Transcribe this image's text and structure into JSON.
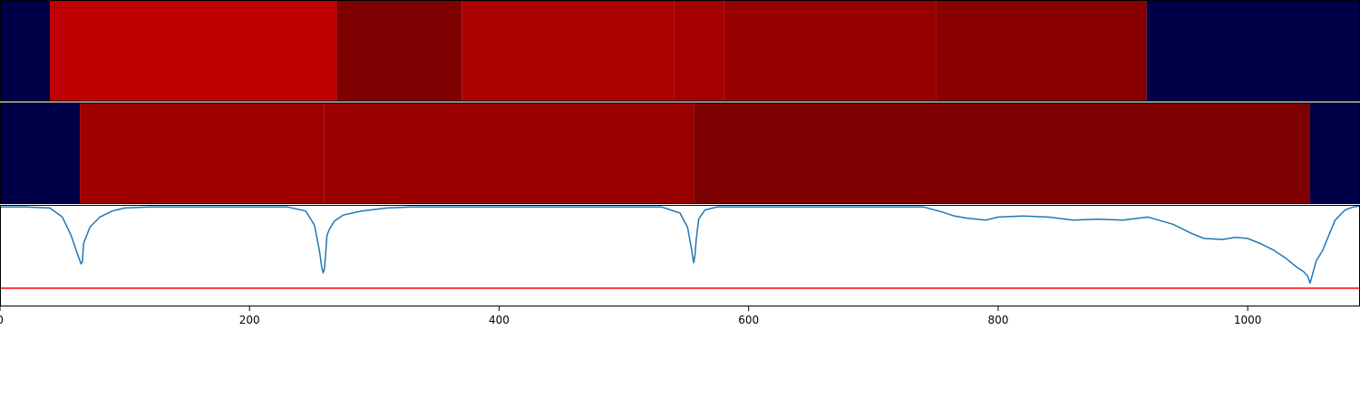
{
  "chart_data": [
    {
      "type": "heatmap",
      "panel": "top",
      "xlim": [
        0,
        1090
      ],
      "segments": [
        {
          "start": 0,
          "end": 40,
          "color": "#000048"
        },
        {
          "start": 40,
          "end": 270,
          "color": "#be0000"
        },
        {
          "start": 270,
          "end": 370,
          "color": "#7e0000"
        },
        {
          "start": 370,
          "end": 540,
          "color": "#ad0000"
        },
        {
          "start": 540,
          "end": 580,
          "color": "#a50000"
        },
        {
          "start": 580,
          "end": 750,
          "color": "#980000"
        },
        {
          "start": 750,
          "end": 919,
          "color": "#8a0000"
        },
        {
          "start": 919,
          "end": 1090,
          "color": "#000048"
        }
      ]
    },
    {
      "type": "heatmap",
      "panel": "middle",
      "xlim": [
        0,
        1090
      ],
      "segments": [
        {
          "start": 0,
          "end": 64,
          "color": "#000048"
        },
        {
          "start": 64,
          "end": 260,
          "color": "#9f0000"
        },
        {
          "start": 260,
          "end": 556,
          "color": "#9a0000"
        },
        {
          "start": 556,
          "end": 1050,
          "color": "#7e0000"
        },
        {
          "start": 1050,
          "end": 1090,
          "color": "#000048"
        }
      ]
    },
    {
      "type": "line",
      "panel": "bottom",
      "xlim": [
        0,
        1090
      ],
      "ylim": [
        -1.0,
        0.0
      ],
      "series": [
        {
          "color": "#1f77b4",
          "x": [
            0,
            20,
            40,
            50,
            57,
            62,
            65,
            66,
            67,
            72,
            80,
            90,
            100,
            120,
            150,
            180,
            200,
            230,
            245,
            252,
            256,
            258,
            259,
            260,
            261,
            262,
            264,
            268,
            275,
            290,
            310,
            330,
            370,
            420,
            480,
            530,
            545,
            551,
            554,
            556,
            557,
            558,
            560,
            565,
            575,
            600,
            650,
            700,
            740,
            755,
            765,
            775,
            790,
            800,
            820,
            840,
            860,
            880,
            900,
            920,
            940,
            955,
            965,
            980,
            990,
            1000,
            1010,
            1020,
            1030,
            1040,
            1045,
            1048,
            1050,
            1052,
            1055,
            1060,
            1065,
            1070,
            1078,
            1085,
            1090
          ],
          "y": [
            -0.02,
            -0.02,
            -0.03,
            -0.12,
            -0.3,
            -0.48,
            -0.58,
            -0.56,
            -0.38,
            -0.22,
            -0.12,
            -0.06,
            -0.03,
            -0.02,
            -0.02,
            -0.02,
            -0.02,
            -0.02,
            -0.06,
            -0.2,
            -0.45,
            -0.62,
            -0.67,
            -0.63,
            -0.48,
            -0.3,
            -0.24,
            -0.16,
            -0.1,
            -0.06,
            -0.03,
            -0.02,
            -0.02,
            -0.02,
            -0.02,
            -0.02,
            -0.08,
            -0.22,
            -0.42,
            -0.57,
            -0.5,
            -0.34,
            -0.14,
            -0.05,
            -0.02,
            -0.02,
            -0.02,
            -0.02,
            -0.02,
            -0.07,
            -0.11,
            -0.13,
            -0.15,
            -0.12,
            -0.11,
            -0.12,
            -0.15,
            -0.14,
            -0.15,
            -0.12,
            -0.19,
            -0.28,
            -0.33,
            -0.34,
            -0.32,
            -0.33,
            -0.38,
            -0.44,
            -0.52,
            -0.62,
            -0.66,
            -0.7,
            -0.77,
            -0.68,
            -0.55,
            -0.45,
            -0.3,
            -0.15,
            -0.05,
            -0.02,
            -0.01
          ]
        }
      ],
      "hline": {
        "y": -0.82,
        "color": "#ff0000"
      },
      "xticks": [
        0,
        200,
        400,
        600,
        800,
        1000
      ],
      "xtick_labels": [
        "0",
        "200",
        "400",
        "600",
        "800",
        "1000"
      ]
    }
  ]
}
